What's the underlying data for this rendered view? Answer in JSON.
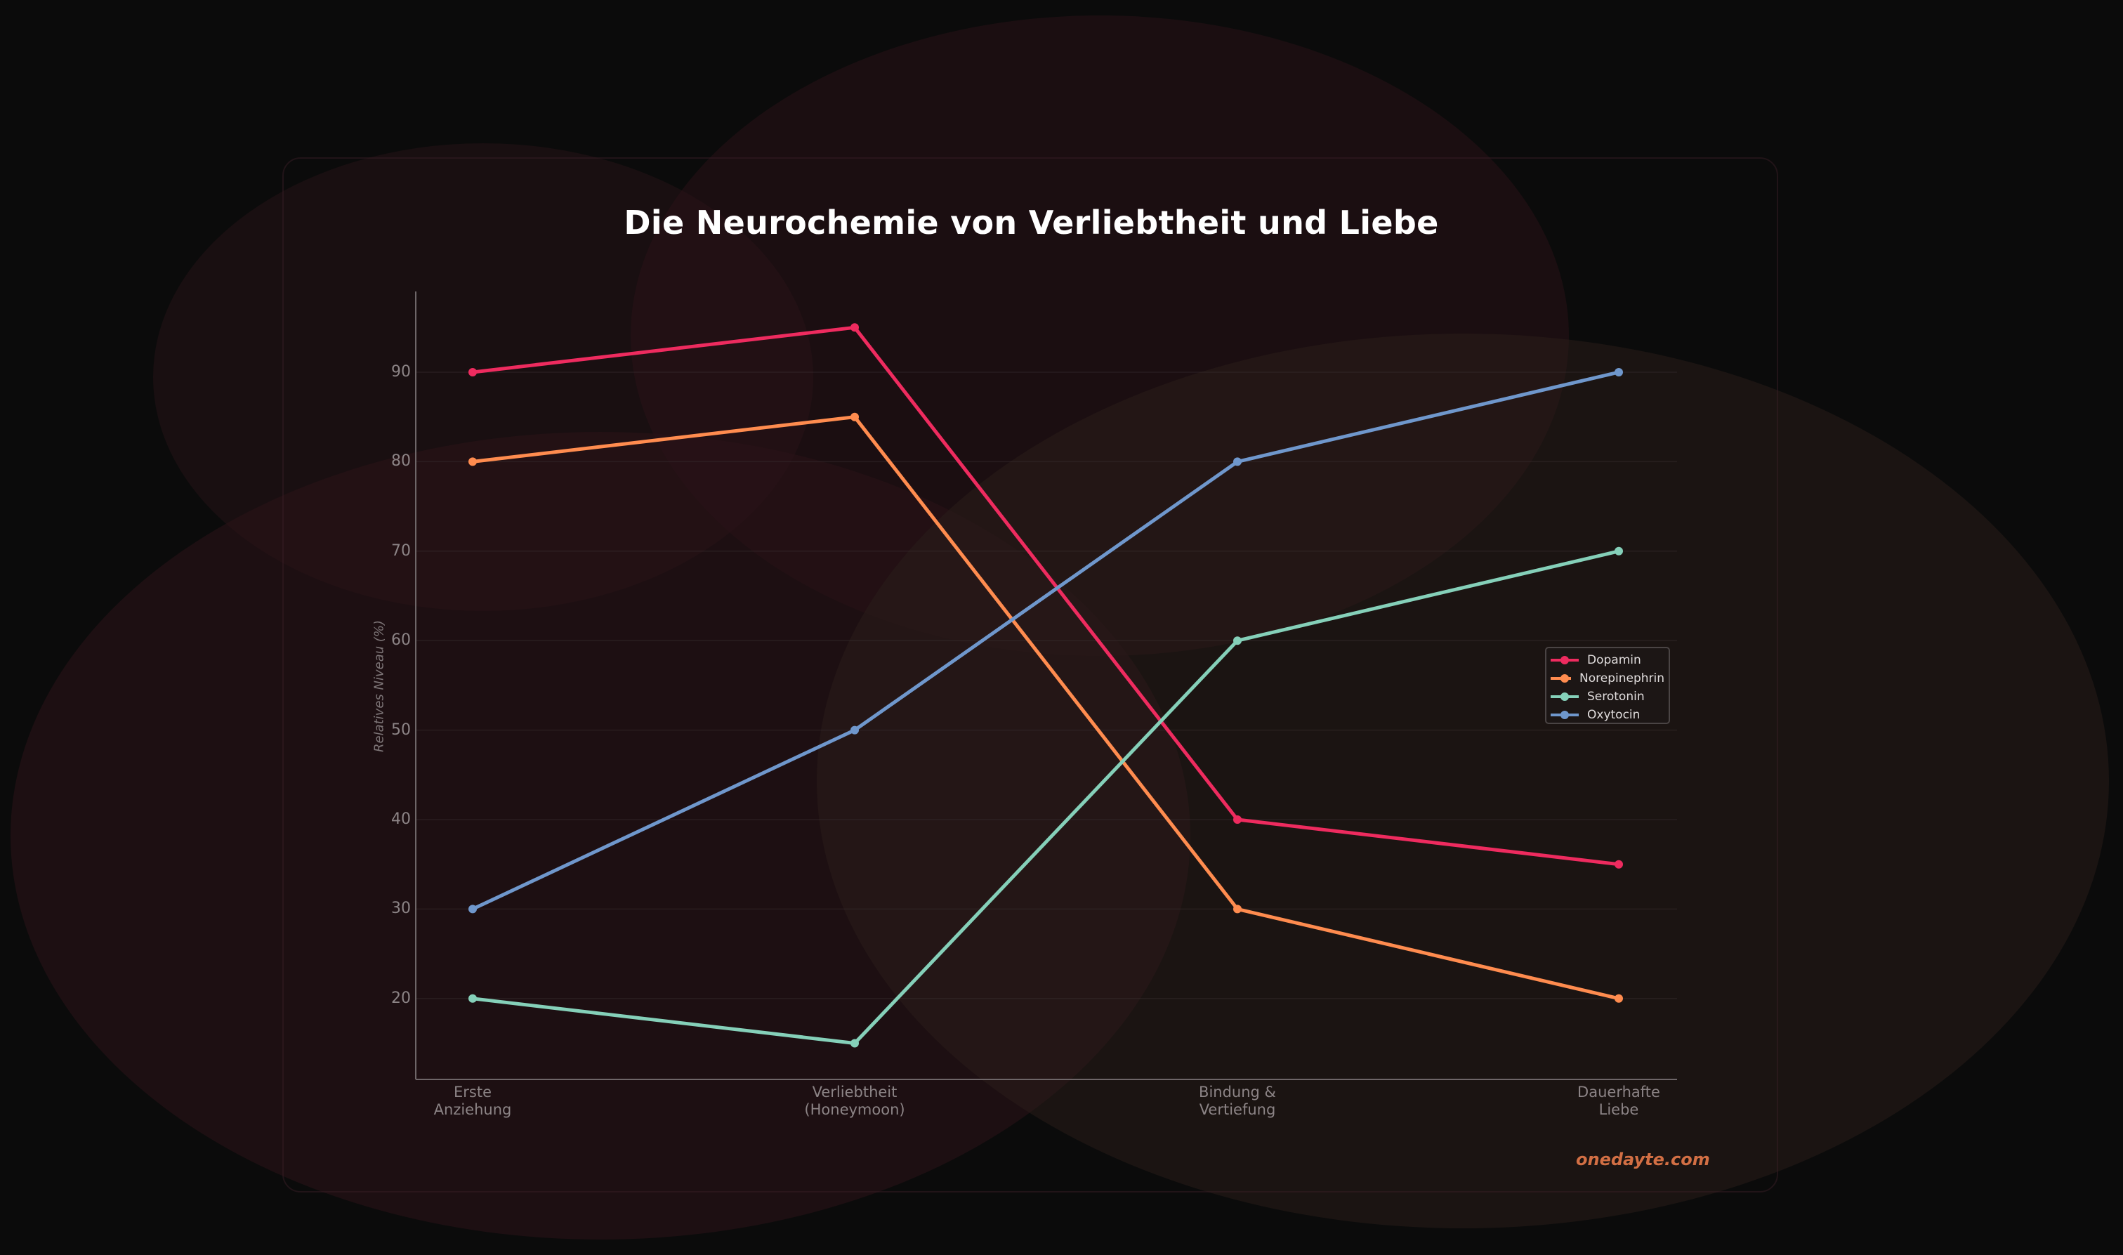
{
  "title": "Die Neurochemie von Verliebtheit und Liebe",
  "watermark": "onedayte.com",
  "colors": {
    "background": "#0b0b0b",
    "title": "#ffffff",
    "tick_label": "#8c8486",
    "accent_watermark": "#d26f44",
    "dopamin": "#ee2b5f",
    "norepinephrin": "#ff8c4f",
    "serotonin": "#85d0b9",
    "oxytocin": "#6f97cc"
  },
  "legend": {
    "items": [
      {
        "label": "Dopamin",
        "color": "#ee2b5f"
      },
      {
        "label": "Norepinephrin",
        "color": "#ff8c4f"
      },
      {
        "label": "Serotonin",
        "color": "#85d0b9"
      },
      {
        "label": "Oxytocin",
        "color": "#6f97cc"
      }
    ]
  },
  "axes": {
    "ylabel": "Relatives Niveau (%)",
    "yticks": [
      "90",
      "80",
      "70",
      "60",
      "50",
      "40",
      "30",
      "20"
    ],
    "xticks": [
      {
        "line1": "Erste",
        "line2": "Anziehung"
      },
      {
        "line1": "Verliebtheit",
        "line2": "(Honeymoon)"
      },
      {
        "line1": "Bindung &",
        "line2": "Vertiefung"
      },
      {
        "line1": "Dauerhafte",
        "line2": "Liebe"
      }
    ]
  },
  "chart_data": {
    "type": "line",
    "title": "Die Neurochemie von Verliebtheit und Liebe",
    "xlabel": "",
    "ylabel": "Relatives Niveau (%)",
    "categories": [
      "Erste Anziehung",
      "Verliebtheit (Honeymoon)",
      "Bindung & Vertiefung",
      "Dauerhafte Liebe"
    ],
    "series": [
      {
        "name": "Dopamin",
        "color": "#ee2b5f",
        "values": [
          90,
          95,
          40,
          35
        ]
      },
      {
        "name": "Norepinephrin",
        "color": "#ff8c4f",
        "values": [
          80,
          85,
          30,
          20
        ]
      },
      {
        "name": "Serotonin",
        "color": "#85d0b9",
        "values": [
          20,
          15,
          60,
          70
        ]
      },
      {
        "name": "Oxytocin",
        "color": "#6f97cc",
        "values": [
          30,
          50,
          80,
          90
        ]
      }
    ],
    "ylim": [
      11,
      99
    ],
    "yticks": [
      20,
      30,
      40,
      50,
      60,
      70,
      80,
      90
    ],
    "grid": "horizontal",
    "legend_position": "center right",
    "markers": true
  }
}
